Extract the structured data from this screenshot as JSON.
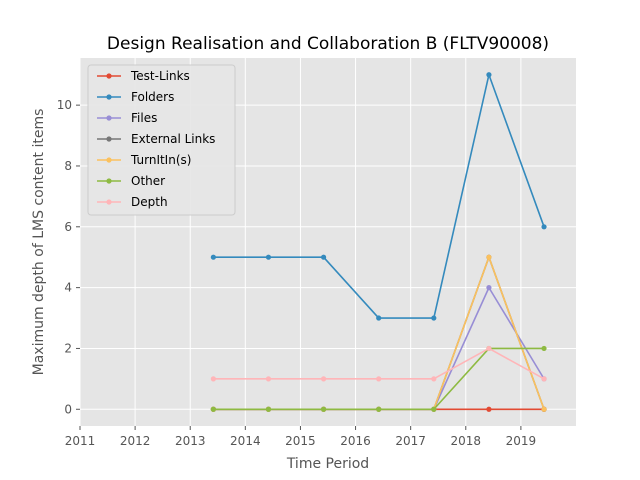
{
  "chart_data": {
    "type": "line",
    "title": "Design Realisation and Collaboration B (FLTV90008)",
    "xlabel": "Time Period",
    "ylabel": "Maximum depth of LMS content items",
    "xlim": [
      2011,
      2020
    ],
    "ylim": [
      -0.55,
      11.55
    ],
    "xticks": [
      2011,
      2012,
      2013,
      2014,
      2015,
      2016,
      2017,
      2018,
      2019
    ],
    "yticks": [
      0,
      2,
      4,
      6,
      8,
      10
    ],
    "grid": true,
    "legend_position": "top-left",
    "x": [
      2013.42,
      2014.42,
      2015.42,
      2016.42,
      2017.42,
      2018.42,
      2019.42
    ],
    "series": [
      {
        "name": "Test-Links",
        "color": "#E24A33",
        "values": [
          0,
          0,
          0,
          0,
          0,
          0,
          0
        ]
      },
      {
        "name": "Folders",
        "color": "#348ABD",
        "values": [
          5,
          5,
          5,
          3,
          3,
          11,
          6
        ]
      },
      {
        "name": "Files",
        "color": "#988ED5",
        "values": [
          0,
          0,
          0,
          0,
          0,
          4,
          1
        ]
      },
      {
        "name": "External Links",
        "color": "#777777",
        "values": [
          0,
          0,
          0,
          0,
          0,
          5,
          0
        ]
      },
      {
        "name": "TurnItIn(s)",
        "color": "#FBC15E",
        "values": [
          0,
          0,
          0,
          0,
          0,
          5,
          0
        ]
      },
      {
        "name": "Other",
        "color": "#8EBA42",
        "values": [
          0,
          0,
          0,
          0,
          0,
          2,
          2
        ]
      },
      {
        "name": "Depth",
        "color": "#FFB5B8",
        "values": [
          1,
          1,
          1,
          1,
          1,
          2,
          1
        ]
      }
    ]
  }
}
